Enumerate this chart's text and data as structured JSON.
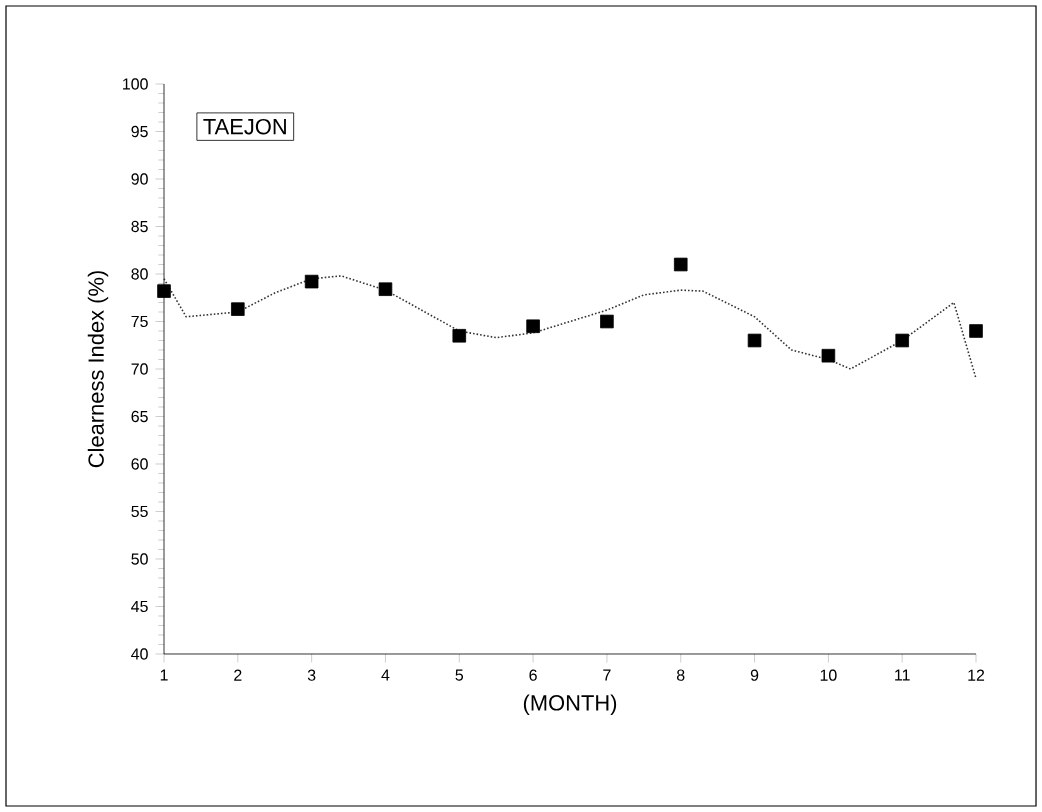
{
  "chart_data": {
    "type": "scatter",
    "xlabel": "(MONTH)",
    "ylabel": "Clearness Index (%)",
    "annotations": [
      "TAEJON"
    ],
    "xlim": [
      1,
      12
    ],
    "ylim": [
      40,
      100
    ],
    "xticks": [
      1,
      2,
      3,
      4,
      5,
      6,
      7,
      8,
      9,
      10,
      11,
      12
    ],
    "yticks": [
      40,
      45,
      50,
      55,
      60,
      65,
      70,
      75,
      80,
      85,
      90,
      95,
      100
    ],
    "series": [
      {
        "color": "#000000",
        "marker": "square",
        "x": [
          1,
          2,
          3,
          4,
          5,
          6,
          7,
          8,
          9,
          10,
          11,
          12
        ],
        "values": [
          78.2,
          76.3,
          79.2,
          78.4,
          73.5,
          74.5,
          75.0,
          81.0,
          73.0,
          71.4,
          73.0,
          74.0
        ]
      },
      {
        "type": "line",
        "color": "#333333",
        "marker": "none",
        "line_style": "dotted",
        "x": [
          1,
          1.3,
          2,
          2.5,
          3,
          3.4,
          4,
          5,
          5.5,
          6,
          7,
          7.5,
          8,
          8.3,
          9,
          9.5,
          10,
          10.3,
          11,
          11.7,
          12
        ],
        "values": [
          79.5,
          75.5,
          76,
          78,
          79.5,
          79.8,
          78.3,
          74,
          73.3,
          73.8,
          76.2,
          77.8,
          78.3,
          78.2,
          75.5,
          72,
          71,
          70,
          73,
          77,
          69
        ]
      }
    ],
    "grid": false
  }
}
